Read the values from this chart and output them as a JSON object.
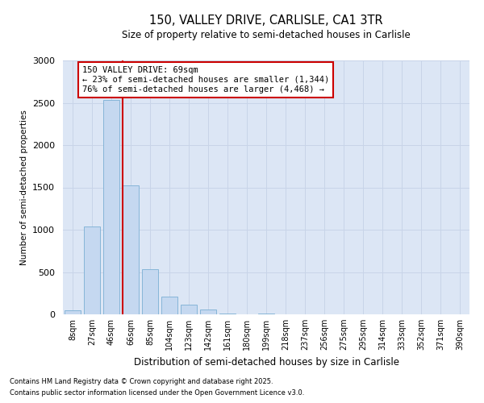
{
  "title_line1": "150, VALLEY DRIVE, CARLISLE, CA1 3TR",
  "title_line2": "Size of property relative to semi-detached houses in Carlisle",
  "xlabel": "Distribution of semi-detached houses by size in Carlisle",
  "ylabel": "Number of semi-detached properties",
  "categories": [
    "8sqm",
    "27sqm",
    "46sqm",
    "66sqm",
    "85sqm",
    "104sqm",
    "123sqm",
    "142sqm",
    "161sqm",
    "180sqm",
    "199sqm",
    "218sqm",
    "237sqm",
    "256sqm",
    "275sqm",
    "295sqm",
    "314sqm",
    "333sqm",
    "352sqm",
    "371sqm",
    "390sqm"
  ],
  "values": [
    50,
    1040,
    2530,
    1520,
    530,
    210,
    110,
    55,
    10,
    0,
    5,
    0,
    0,
    0,
    0,
    0,
    0,
    0,
    0,
    0,
    0
  ],
  "bar_color": "#c5d8f0",
  "bar_edge_color": "#7bafd4",
  "vline_color": "#cc0000",
  "annotation_text_line1": "150 VALLEY DRIVE: 69sqm",
  "annotation_text_line2": "← 23% of semi-detached houses are smaller (1,344)",
  "annotation_text_line3": "76% of semi-detached houses are larger (4,468) →",
  "annotation_box_facecolor": "#ffffff",
  "annotation_box_edgecolor": "#cc0000",
  "grid_color": "#c8d4e8",
  "background_color": "#dce6f5",
  "ylim_max": 3000,
  "footnote_line1": "Contains HM Land Registry data © Crown copyright and database right 2025.",
  "footnote_line2": "Contains public sector information licensed under the Open Government Licence v3.0."
}
